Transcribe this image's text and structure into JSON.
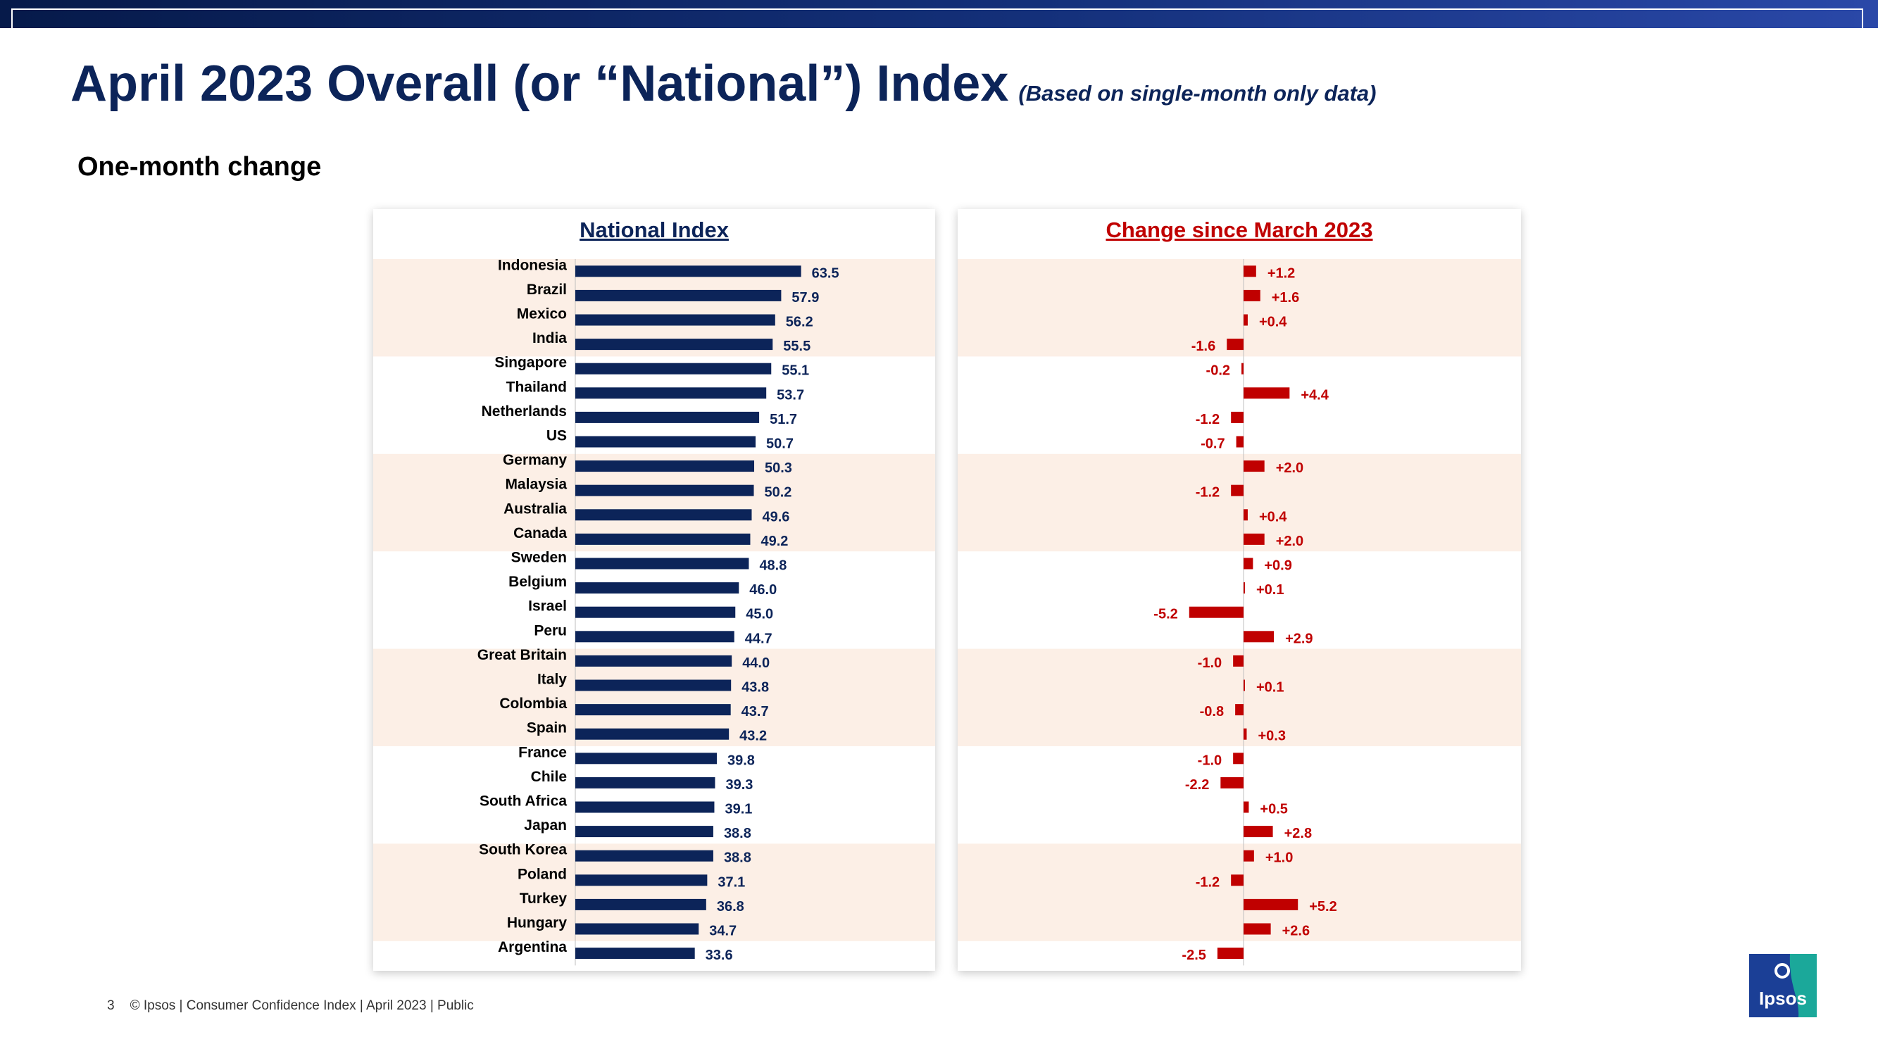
{
  "header": {
    "title": "April 2023 Overall (or “National”) Index",
    "subtitle": "(Based on single-month only data)",
    "section": "One-month change"
  },
  "footer": {
    "page_number": "3",
    "text": "© Ipsos | Consumer Confidence Index | April 2023 | Public"
  },
  "logo": {
    "text": "Ipsos"
  },
  "colors": {
    "national_bar": "#0c2459",
    "change_bar": "#c00000",
    "band_shade": "#fcefe6"
  },
  "chart_data": [
    {
      "type": "bar",
      "orientation": "horizontal",
      "title": "National Index",
      "categories": [
        "Indonesia",
        "Brazil",
        "Mexico",
        "India",
        "Singapore",
        "Thailand",
        "Netherlands",
        "US",
        "Germany",
        "Malaysia",
        "Australia",
        "Canada",
        "Sweden",
        "Belgium",
        "Israel",
        "Peru",
        "Great Britain",
        "Italy",
        "Colombia",
        "Spain",
        "France",
        "Chile",
        "South Africa",
        "Japan",
        "South Korea",
        "Poland",
        "Turkey",
        "Hungary",
        "Argentina"
      ],
      "values": [
        63.5,
        57.9,
        56.2,
        55.5,
        55.1,
        53.7,
        51.7,
        50.7,
        50.3,
        50.2,
        49.6,
        49.2,
        48.8,
        46.0,
        45.0,
        44.7,
        44.0,
        43.8,
        43.7,
        43.2,
        39.8,
        39.3,
        39.1,
        38.8,
        38.8,
        37.1,
        36.8,
        34.7,
        33.6
      ],
      "labels": [
        "63.5",
        "57.9",
        "56.2",
        "55.5",
        "55.1",
        "53.7",
        "51.7",
        "50.7",
        "50.3",
        "50.2",
        "49.6",
        "49.2",
        "48.8",
        "46.0",
        "45.0",
        "44.7",
        "44.0",
        "43.8",
        "43.7",
        "43.2",
        "39.8",
        "39.3",
        "39.1",
        "38.8",
        "38.8",
        "37.1",
        "36.8",
        "34.7",
        "33.6"
      ],
      "xlim": [
        0,
        75
      ]
    },
    {
      "type": "bar",
      "orientation": "horizontal",
      "title": "Change since March 2023",
      "categories": [
        "Indonesia",
        "Brazil",
        "Mexico",
        "India",
        "Singapore",
        "Thailand",
        "Netherlands",
        "US",
        "Germany",
        "Malaysia",
        "Australia",
        "Canada",
        "Sweden",
        "Belgium",
        "Israel",
        "Peru",
        "Great Britain",
        "Italy",
        "Colombia",
        "Spain",
        "France",
        "Chile",
        "South Africa",
        "Japan",
        "South Korea",
        "Poland",
        "Turkey",
        "Hungary",
        "Argentina"
      ],
      "values": [
        1.2,
        1.6,
        0.4,
        -1.6,
        -0.2,
        4.4,
        -1.2,
        -0.7,
        2.0,
        -1.2,
        0.4,
        2.0,
        0.9,
        0.1,
        -5.2,
        2.9,
        -1.0,
        0.1,
        -0.8,
        0.3,
        -1.0,
        -2.2,
        0.5,
        2.8,
        1.0,
        -1.2,
        5.2,
        2.6,
        -2.5
      ],
      "labels": [
        "+1.2",
        "+1.6",
        "+0.4",
        "-1.6",
        "-0.2",
        "+4.4",
        "-1.2",
        "-0.7",
        "+2.0",
        "-1.2",
        "+0.4",
        "+2.0",
        "+0.9",
        "+0.1",
        "-5.2",
        "+2.9",
        "-1.0",
        "+0.1",
        "-0.8",
        "+0.3",
        "-1.0",
        "-2.2",
        "+0.5",
        "+2.8",
        "+1.0",
        "-1.2",
        "+5.2",
        "+2.6",
        "-2.5"
      ],
      "xlim": [
        -27,
        27
      ]
    }
  ]
}
